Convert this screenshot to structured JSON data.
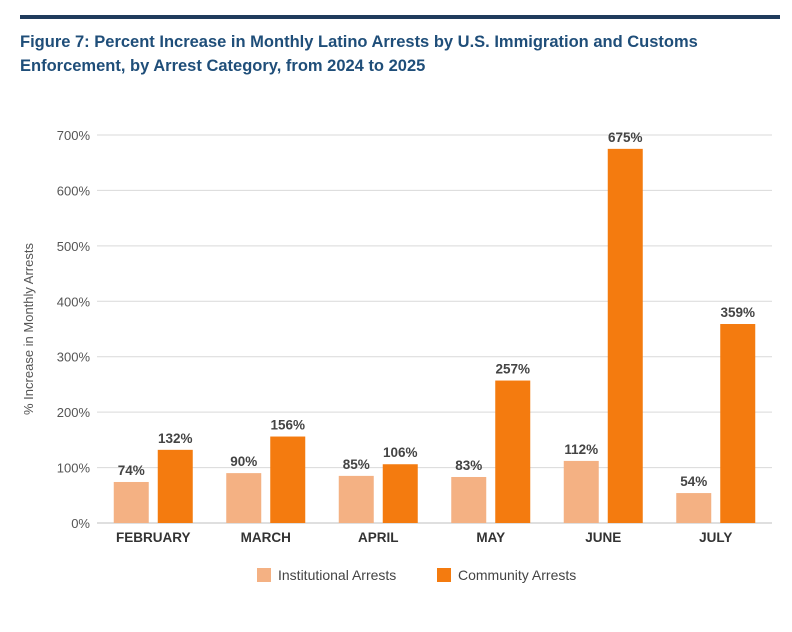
{
  "title": "Figure 7: Percent Increase in Monthly Latino Arrests by U.S. Immigration and Customs Enforcement, by Arrest Category, from 2024 to 2025",
  "colors": {
    "rule": "#1f3b5c",
    "title": "#1f4e79",
    "institutional": "#f4b183",
    "community": "#f47b0f",
    "grid": "#d9d9d9"
  },
  "chart_data": {
    "type": "bar",
    "title": "Figure 7: Percent Increase in Monthly Latino Arrests by U.S. Immigration and Customs Enforcement, by Arrest Category, from 2024 to 2025",
    "xlabel": "",
    "ylabel": "% Increase in Monthly Arrests",
    "ylim": [
      0,
      700
    ],
    "yticks": [
      0,
      100,
      200,
      300,
      400,
      500,
      600,
      700
    ],
    "ytick_labels": [
      "0%",
      "100%",
      "200%",
      "300%",
      "400%",
      "500%",
      "600%",
      "700%"
    ],
    "categories": [
      "FEBRUARY",
      "MARCH",
      "APRIL",
      "MAY",
      "JUNE",
      "JULY"
    ],
    "series": [
      {
        "name": "Institutional Arrests",
        "values": [
          74,
          90,
          85,
          83,
          112,
          54
        ],
        "labels": [
          "74%",
          "90%",
          "85%",
          "83%",
          "112%",
          "54%"
        ]
      },
      {
        "name": "Community Arrests",
        "values": [
          132,
          156,
          106,
          257,
          675,
          359
        ],
        "labels": [
          "132%",
          "156%",
          "106%",
          "257%",
          "675%",
          "359%"
        ]
      }
    ],
    "legend": "bottom-center",
    "grid": true
  }
}
